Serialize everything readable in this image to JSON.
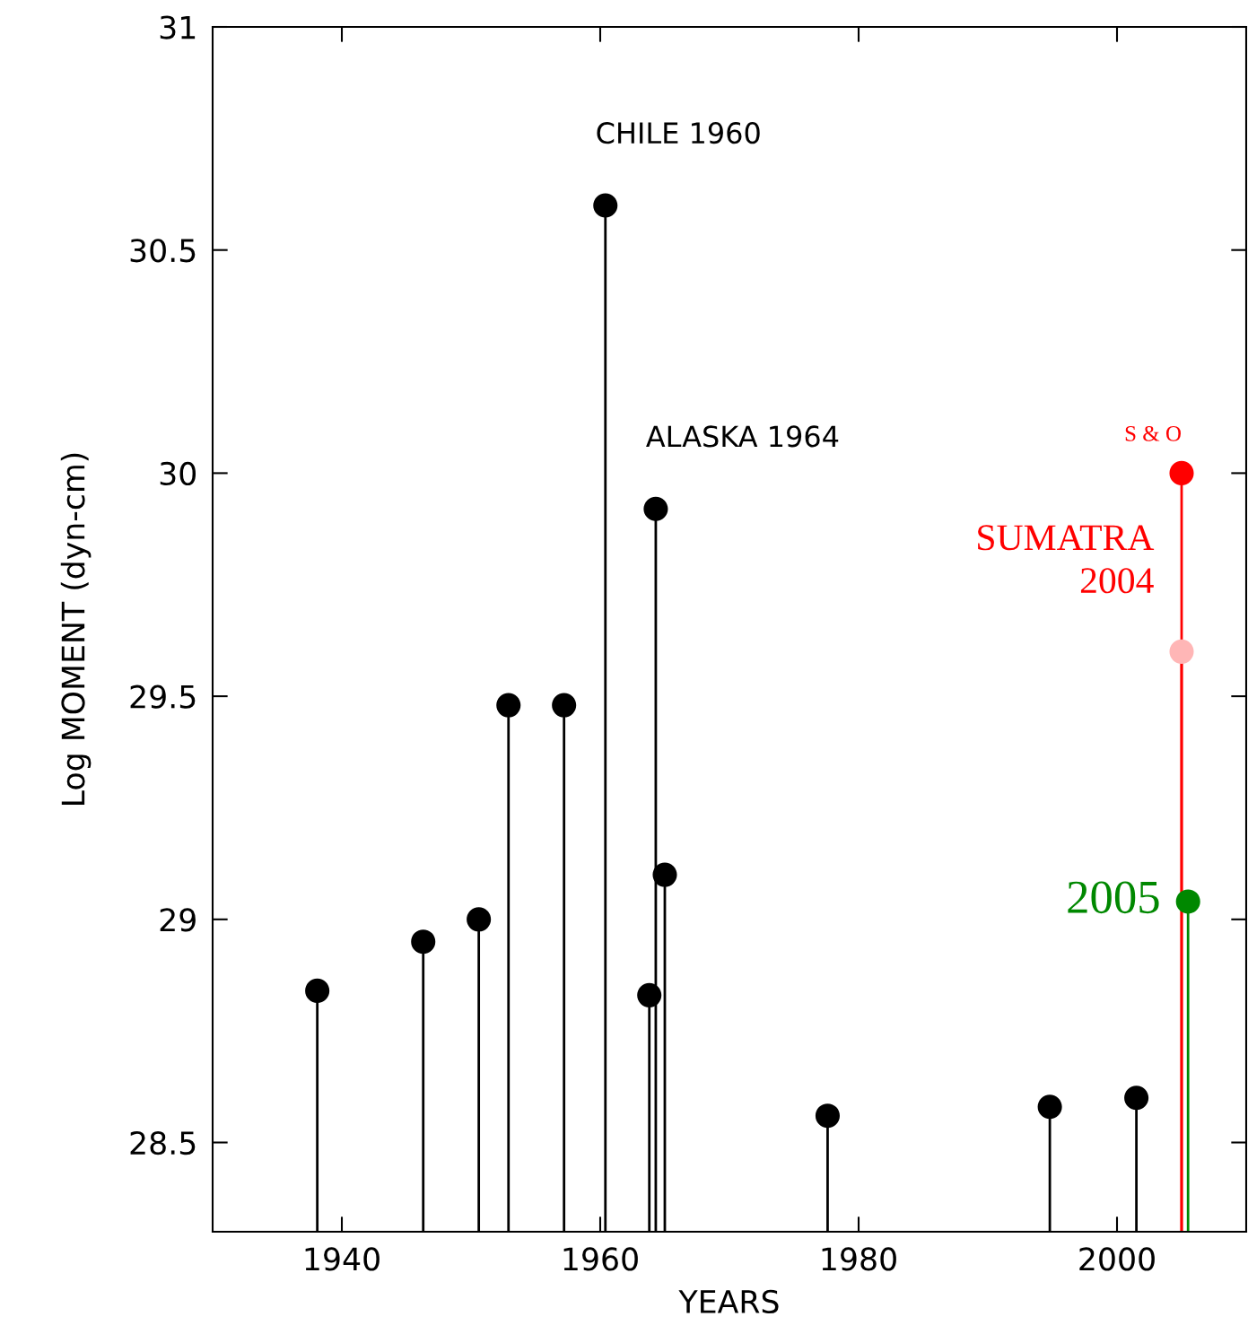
{
  "chart_data": {
    "type": "lollipop",
    "xlabel": "YEARS",
    "ylabel": "Log MOMENT (dyn-cm)",
    "xlim": [
      1930,
      2010
    ],
    "xticks": [
      1940,
      1960,
      1980,
      2000
    ],
    "ylim": [
      28.3,
      31
    ],
    "yticks": [
      28.5,
      29,
      29.5,
      30,
      30.5,
      31
    ],
    "grid": false,
    "legend": false,
    "marker": "circle",
    "series": [
      {
        "color": "#000000",
        "x": [
          1938.1,
          1946.3,
          1950.6,
          1952.9,
          1957.2,
          1960.4,
          1963.8,
          1964.3,
          1965.0,
          1977.6,
          1994.8,
          2001.5
        ],
        "values": [
          28.84,
          28.95,
          29.0,
          29.48,
          29.48,
          30.6,
          28.83,
          29.92,
          29.1,
          28.56,
          28.58,
          28.6
        ]
      },
      {
        "name": "SUMATRA\n2004",
        "color": "#ff0000",
        "colors": [
          "#ff0000",
          "#ffb6b6"
        ],
        "x": [
          2005.0,
          2005.0
        ],
        "values": [
          30.0,
          29.6
        ]
      },
      {
        "name": "2005",
        "color": "#008800",
        "x": [
          2005.5
        ],
        "values": [
          29.04
        ]
      }
    ],
    "annotations": [
      {
        "text": "CHILE 1960",
        "x": 1960.4,
        "y": 30.6
      },
      {
        "text": "ALASKA 1964",
        "x": 1964.3,
        "y": 29.92
      },
      {
        "text": "S & O",
        "x": 2005.0,
        "y": 30.0
      }
    ]
  }
}
